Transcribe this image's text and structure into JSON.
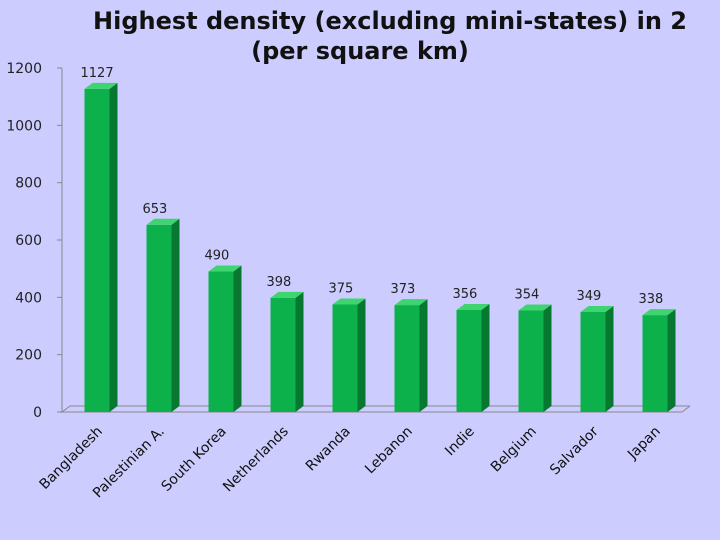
{
  "chart_data": {
    "type": "bar",
    "title_line1": "Highest density (excluding mini-states) in 2",
    "title_line2": "(per square km)",
    "categories": [
      "Bangladesh",
      "Palestinian A.",
      "South Korea",
      "Netherlands",
      "Rwanda",
      "Lebanon",
      "Indie",
      "Belgium",
      "Salvador",
      "Japan"
    ],
    "values": [
      1127,
      653,
      490,
      398,
      375,
      373,
      356,
      354,
      349,
      338
    ],
    "data_labels": [
      "1127",
      "653",
      "490",
      "398",
      "375",
      "373",
      "356",
      "354",
      "349",
      "338"
    ],
    "yticks": [
      "0",
      "200",
      "400",
      "600",
      "800",
      "1000",
      "1200"
    ],
    "ylim": [
      0,
      1200
    ],
    "xlabel": "",
    "ylabel": "",
    "grid": false,
    "legend": "none"
  },
  "colors": {
    "background": "#ccccff",
    "bar_front": "#0db14b",
    "bar_side": "#07782f",
    "bar_top": "#3ed46f",
    "axis": "#888888"
  }
}
